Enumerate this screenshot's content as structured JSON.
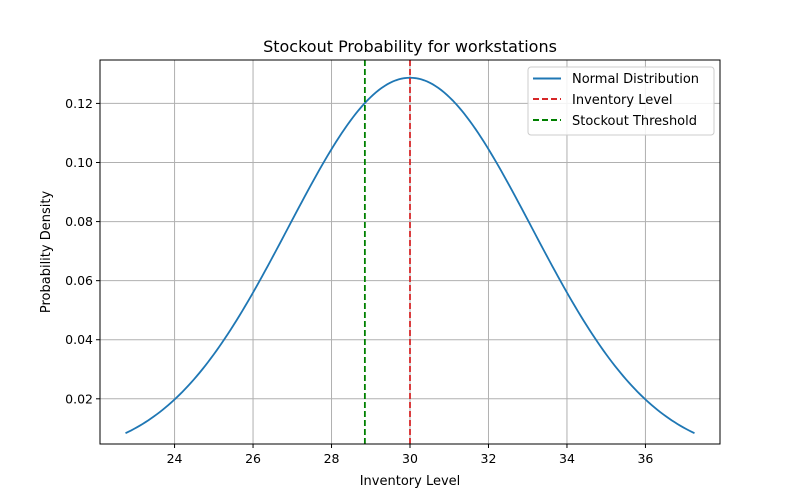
{
  "chart_data": {
    "type": "line",
    "title": "Stockout Probability for workstations",
    "xlabel": "Inventory Level",
    "ylabel": "Probability Density",
    "xlim": [
      22.1,
      37.9
    ],
    "ylim": [
      0.0047,
      0.1347
    ],
    "xticks": [
      24,
      26,
      28,
      30,
      32,
      34,
      36
    ],
    "xtick_labels": [
      "24",
      "26",
      "28",
      "30",
      "32",
      "34",
      "36"
    ],
    "yticks": [
      0.02,
      0.04,
      0.06,
      0.08,
      0.1,
      0.12
    ],
    "ytick_labels": [
      "0.02",
      "0.04",
      "0.06",
      "0.08",
      "0.10",
      "0.12"
    ],
    "grid": true,
    "legend_position": "top-right",
    "series": [
      {
        "name": "Normal Distribution",
        "kind": "curve",
        "color": "#1f77b4",
        "mean": 30,
        "std": 3.1,
        "x_range": [
          22.75,
          37.25
        ]
      },
      {
        "name": "Inventory Level",
        "kind": "vline",
        "color": "#d62728",
        "style": "dashed",
        "x": 30
      },
      {
        "name": "Stockout Threshold",
        "kind": "vline",
        "color": "#008000",
        "style": "dashed",
        "x": 28.85
      }
    ]
  }
}
